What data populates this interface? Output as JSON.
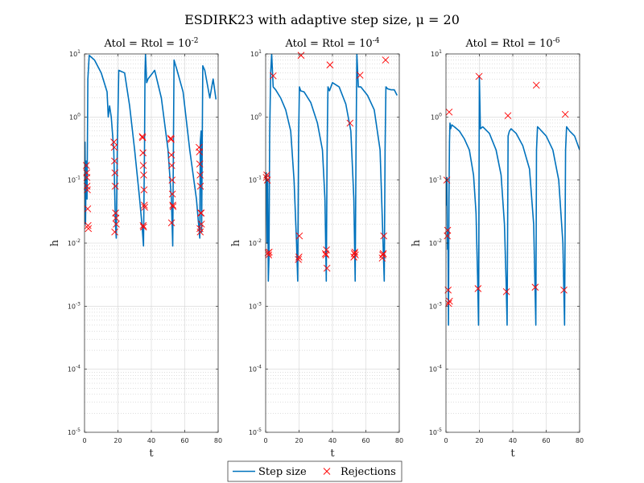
{
  "title": "ESDIRK23 with adaptive step size, μ = 20",
  "legend": {
    "step_label": "Step size",
    "reject_label": "Rejections",
    "colors": {
      "step": "#0072BD",
      "reject": "#FF0000"
    }
  },
  "chart_data": [
    {
      "type": "line",
      "title": "Atol = Rtol = 10",
      "title_exp": "-2",
      "xlabel": "t",
      "ylabel": "h",
      "xlim": [
        0,
        80
      ],
      "ylim": [
        1e-05,
        10
      ],
      "yscale": "log",
      "grid": "on",
      "xticks": [
        "0",
        "20",
        "40",
        "60",
        "80"
      ],
      "yticks": [
        {
          "base": "10",
          "exp": "-5"
        },
        {
          "base": "10",
          "exp": "-4"
        },
        {
          "base": "10",
          "exp": "-3"
        },
        {
          "base": "10",
          "exp": "-2"
        },
        {
          "base": "10",
          "exp": "-1"
        },
        {
          "base": "10",
          "exp": "0"
        },
        {
          "base": "10",
          "exp": "1"
        }
      ],
      "series": [
        {
          "name": "Step size",
          "x": [
            0,
            0.3,
            0.6,
            1,
            1.5,
            2,
            2.8,
            6,
            10,
            13.5,
            14.2,
            15,
            16,
            17.5,
            18.5,
            19,
            19.6,
            20.5,
            24,
            27,
            30,
            33,
            34.5,
            35.3,
            35.9,
            36.2,
            36.5,
            37.2,
            38,
            42,
            46,
            50,
            52,
            52.8,
            53.2,
            53.6,
            54.2,
            55,
            59,
            63,
            67,
            69,
            69.3,
            69.8,
            70.1,
            70.4,
            70.8,
            72,
            75,
            77,
            78.7
          ],
          "y": [
            0.02,
            0.4,
            0.02,
            0.2,
            0.05,
            4,
            9.5,
            8,
            5,
            2.5,
            1.0,
            1.5,
            1.0,
            0.3,
            0.02,
            0.012,
            0.3,
            5.5,
            5,
            1.5,
            0.3,
            0.05,
            0.018,
            0.009,
            0.3,
            5,
            10,
            3.5,
            4,
            5.5,
            2,
            0.3,
            0.05,
            0.009,
            0.3,
            8,
            7,
            6,
            2.5,
            0.3,
            0.05,
            0.012,
            0.4,
            0.6,
            0.015,
            0.2,
            6.5,
            5.5,
            2,
            4,
            1.9
          ]
        },
        {
          "name": "Rejections",
          "x": [
            1.1,
            1.3,
            1.5,
            1.7,
            1.9,
            2.1,
            2.3,
            1.4,
            17.6,
            17.8,
            18,
            18.2,
            18.4,
            18.6,
            18.8,
            19,
            18.1,
            34.6,
            34.8,
            35,
            35.2,
            35.4,
            35.6,
            35.8,
            36,
            35.1,
            35.3,
            51.6,
            51.8,
            52,
            52.2,
            52.4,
            52.6,
            52.8,
            53,
            52.1,
            68.6,
            68.8,
            69,
            69.2,
            69.4,
            69.6,
            69.8,
            70,
            69.1,
            69.3
          ],
          "y": [
            0.17,
            0.13,
            0.08,
            0.07,
            0.035,
            0.019,
            0.017,
            0.11,
            0.4,
            0.33,
            0.2,
            0.13,
            0.08,
            0.03,
            0.025,
            0.02,
            0.015,
            0.49,
            0.47,
            0.27,
            0.17,
            0.12,
            0.07,
            0.04,
            0.037,
            0.019,
            0.018,
            0.46,
            0.44,
            0.25,
            0.17,
            0.1,
            0.06,
            0.04,
            0.038,
            0.021,
            0.33,
            0.28,
            0.18,
            0.12,
            0.08,
            0.03,
            0.03,
            0.02,
            0.017,
            0.015
          ]
        }
      ]
    },
    {
      "type": "line",
      "title": "Atol = Rtol = 10",
      "title_exp": "-4",
      "xlabel": "t",
      "ylabel": "h",
      "xlim": [
        0,
        80
      ],
      "ylim": [
        1e-05,
        10
      ],
      "yscale": "log",
      "grid": "on",
      "xticks": [
        "0",
        "20",
        "40",
        "60",
        "80"
      ],
      "yticks": [
        {
          "base": "10",
          "exp": "-5"
        },
        {
          "base": "10",
          "exp": "-4"
        },
        {
          "base": "10",
          "exp": "-3"
        },
        {
          "base": "10",
          "exp": "-2"
        },
        {
          "base": "10",
          "exp": "-1"
        },
        {
          "base": "10",
          "exp": "0"
        },
        {
          "base": "10",
          "exp": "1"
        }
      ],
      "series": [
        {
          "name": "Step size",
          "x": [
            0,
            0.4,
            0.8,
            1.2,
            1.6,
            2,
            2.4,
            3,
            3.6,
            4.5,
            6,
            9,
            12,
            15,
            17,
            18.5,
            19.2,
            19.7,
            20.2,
            21,
            23,
            27,
            31,
            34,
            35.5,
            36.3,
            36.8,
            37.3,
            38.2,
            40,
            44,
            48,
            51,
            52.8,
            53.6,
            54.1,
            54.6,
            55.5,
            57,
            61,
            65,
            68.5,
            70.3,
            71,
            71.5,
            72,
            73,
            75,
            77,
            78.7
          ],
          "y": [
            0.08,
            0.13,
            0.01,
            0.1,
            0.0025,
            0.006,
            0.5,
            5,
            10,
            3,
            2.7,
            2,
            1.3,
            0.6,
            0.1,
            0.01,
            0.0025,
            0.4,
            3,
            2.6,
            2.5,
            1.7,
            0.8,
            0.3,
            0.05,
            0.0025,
            0.3,
            3,
            2.6,
            3.5,
            3,
            1.6,
            0.6,
            0.05,
            0.0025,
            0.3,
            10,
            3,
            3,
            2.2,
            1.3,
            0.3,
            0.01,
            0.0025,
            0.3,
            3,
            2.8,
            2.7,
            2.7,
            2.2
          ]
        },
        {
          "name": "Rejections",
          "x": [
            0.4,
            0.7,
            1.0,
            1.5,
            1.8,
            2.1,
            4.5,
            19.6,
            19.9,
            20.2,
            21.2,
            35.8,
            36.1,
            36.4,
            36.7,
            38.5,
            50.5,
            52.8,
            53.1,
            53.4,
            53.7,
            56.5,
            69.8,
            70.1,
            70.4,
            70.7,
            71.8
          ],
          "y": [
            0.11,
            0.12,
            0.1,
            0.007,
            0.0065,
            0.0072,
            4.5,
            0.0055,
            0.006,
            0.013,
            9.5,
            0.0068,
            0.0065,
            0.0078,
            0.004,
            6.7,
            0.8,
            0.006,
            0.0068,
            0.0072,
            0.0065,
            4.6,
            0.0058,
            0.0065,
            0.0068,
            0.013,
            8
          ]
        }
      ]
    },
    {
      "type": "line",
      "title": "Atol = Rtol = 10",
      "title_exp": "-6",
      "xlabel": "t",
      "ylabel": "h",
      "xlim": [
        0,
        80
      ],
      "ylim": [
        1e-05,
        10
      ],
      "yscale": "log",
      "grid": "on",
      "xticks": [
        "0",
        "20",
        "40",
        "60",
        "80"
      ],
      "yticks": [
        {
          "base": "10",
          "exp": "-5"
        },
        {
          "base": "10",
          "exp": "-4"
        },
        {
          "base": "10",
          "exp": "-3"
        },
        {
          "base": "10",
          "exp": "-2"
        },
        {
          "base": "10",
          "exp": "-1"
        },
        {
          "base": "10",
          "exp": "0"
        },
        {
          "base": "10",
          "exp": "1"
        }
      ],
      "series": [
        {
          "name": "Step size",
          "x": [
            0,
            0.3,
            0.6,
            0.9,
            1.2,
            1.5,
            1.8,
            2.1,
            2.4,
            2.8,
            3.5,
            5,
            8,
            11,
            14,
            16.5,
            18,
            19,
            19.5,
            20,
            20.6,
            22,
            26,
            30,
            33,
            35,
            36,
            36.6,
            37.2,
            38,
            39,
            42,
            46,
            50,
            52.5,
            53.8,
            54.2,
            54.8,
            56,
            60,
            64,
            67.5,
            70,
            71,
            71.6,
            72.2,
            74,
            77,
            80
          ],
          "y": [
            0.1,
            0.04,
            0.11,
            0.008,
            0.015,
            0.0005,
            0.05,
            0.4,
            0.8,
            0.65,
            0.75,
            0.7,
            0.6,
            0.45,
            0.3,
            0.12,
            0.03,
            0.0025,
            0.0005,
            4.5,
            0.65,
            0.7,
            0.55,
            0.3,
            0.12,
            0.02,
            0.0025,
            0.0005,
            0.5,
            0.6,
            0.65,
            0.55,
            0.35,
            0.15,
            0.02,
            0.0005,
            0.3,
            0.7,
            0.65,
            0.5,
            0.3,
            0.1,
            0.01,
            0.0005,
            0.3,
            0.7,
            0.6,
            0.5,
            0.3
          ]
        },
        {
          "name": "Rejections",
          "x": [
            0.5,
            0.8,
            1.0,
            1.3,
            1.6,
            1.9,
            2.1,
            19.2,
            19.8,
            36.2,
            37.1,
            53.4,
            54.1,
            70.6,
            71.4
          ],
          "y": [
            0.1,
            0.013,
            0.016,
            0.0018,
            0.0011,
            1.2,
            0.0012,
            0.0019,
            4.4,
            0.0017,
            1.05,
            0.002,
            3.2,
            0.0018,
            1.1
          ]
        }
      ]
    }
  ]
}
